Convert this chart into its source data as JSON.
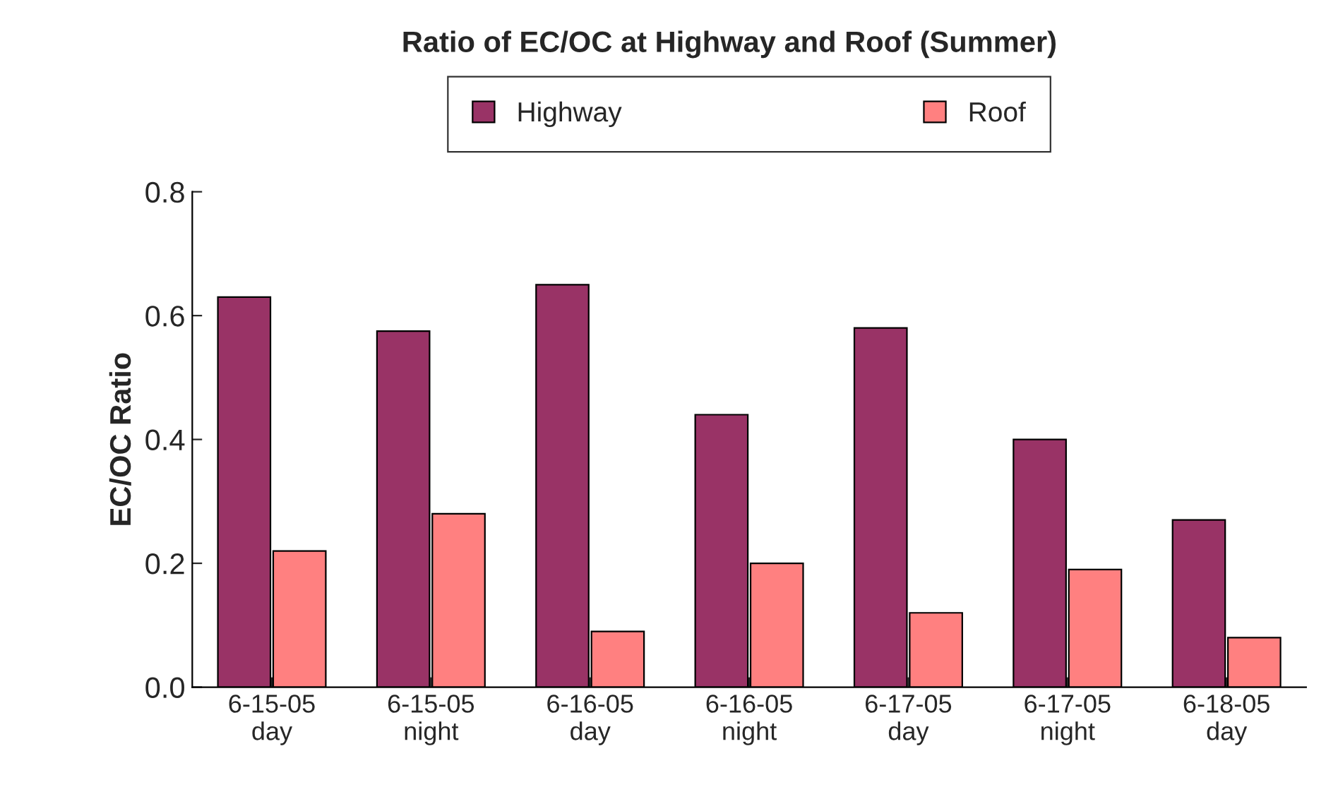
{
  "chart_data": {
    "type": "bar",
    "title": "Ratio of EC/OC at Highway and Roof (Summer)",
    "ylabel": "EC/OC Ratio",
    "categories": [
      "6-15-05\nday",
      "6-15-05\nnight",
      "6-16-05\nday",
      "6-16-05\nnight",
      "6-17-05\nday",
      "6-17-05\nnight",
      "6-18-05\nday"
    ],
    "series": [
      {
        "name": "Highway",
        "color": "#993366",
        "values": [
          0.63,
          0.575,
          0.65,
          0.44,
          0.58,
          0.4,
          0.27
        ]
      },
      {
        "name": "Roof",
        "color": "#ff8080",
        "values": [
          0.22,
          0.28,
          0.09,
          0.2,
          0.12,
          0.19,
          0.08
        ]
      }
    ],
    "ylim": [
      0,
      0.8
    ],
    "yticks": [
      {
        "value": 0,
        "label": "0.0"
      },
      {
        "value": 0.2,
        "label": "0.2"
      },
      {
        "value": 0.4,
        "label": "0.4"
      },
      {
        "value": 0.6,
        "label": "0.6"
      },
      {
        "value": 0.8,
        "label": "0.8"
      }
    ],
    "grid": false,
    "legend": "top"
  }
}
